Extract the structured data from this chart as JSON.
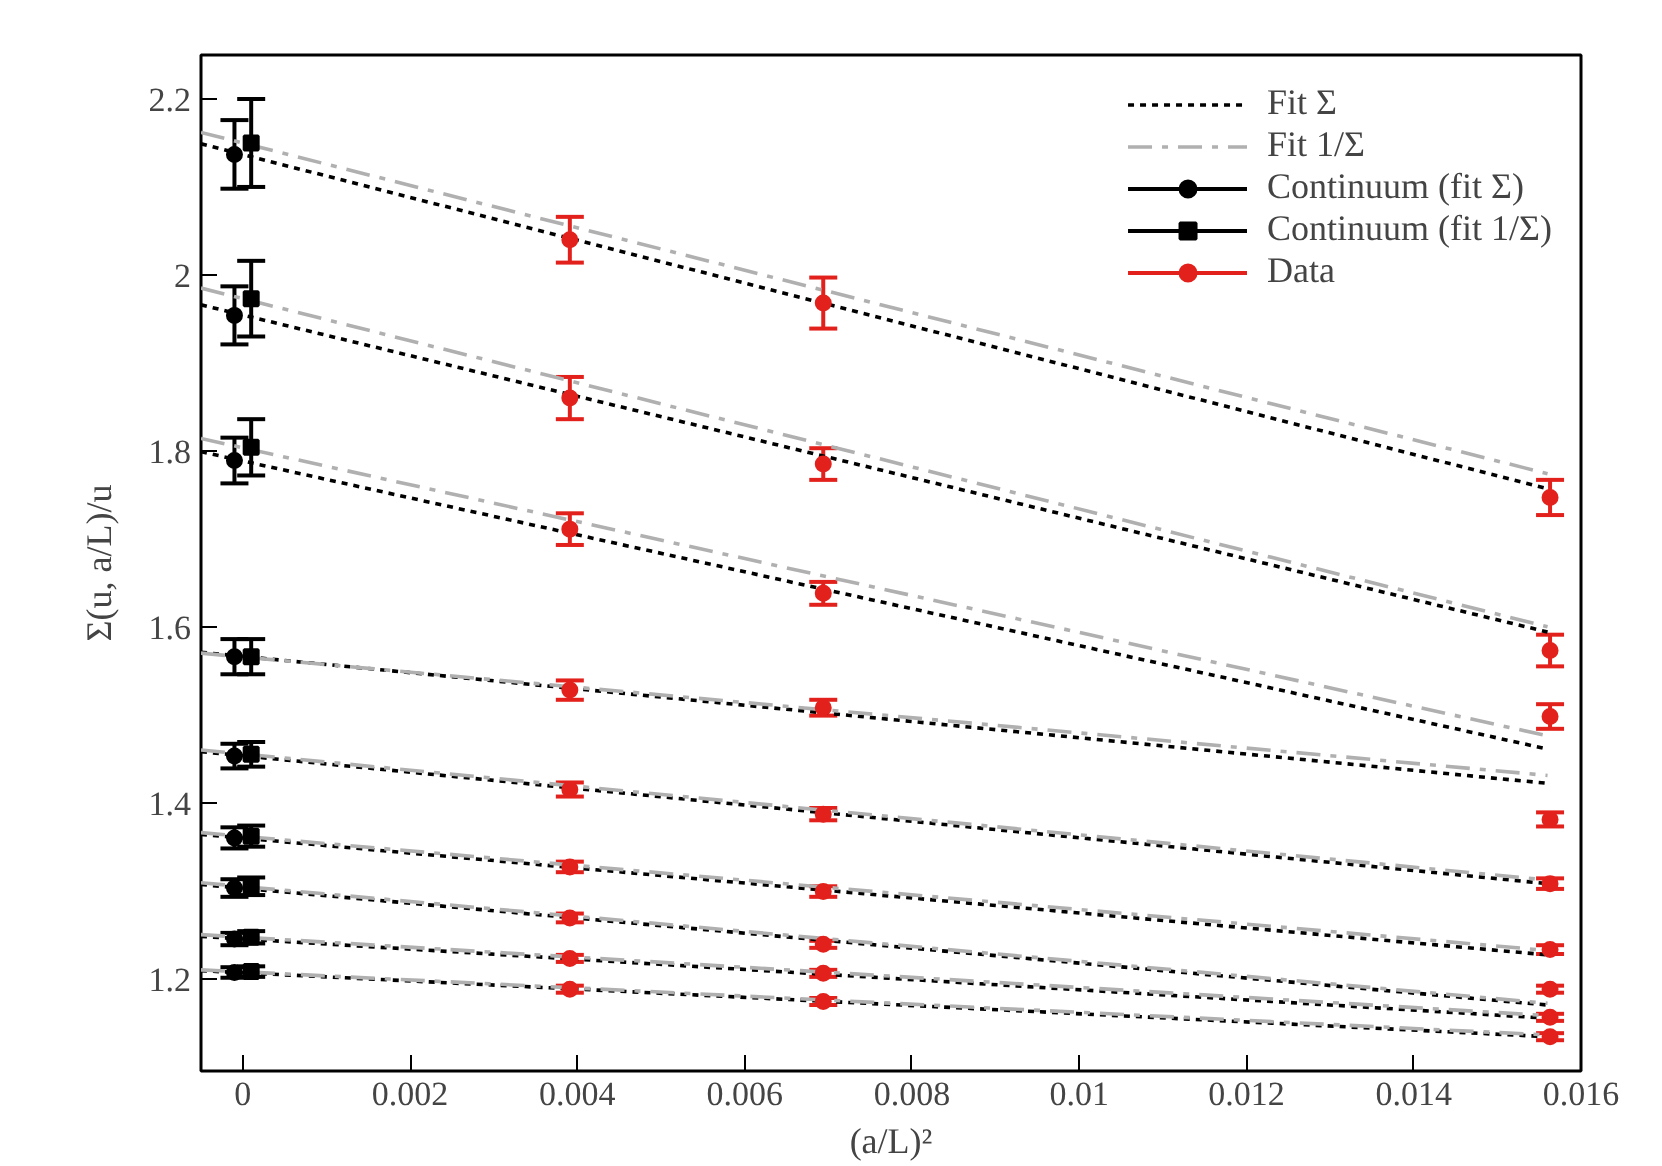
{
  "chart_data": {
    "type": "scatter",
    "xlabel": "(a/L)²",
    "ylabel": "Σ(u, a/L)/u",
    "xlim": [
      -0.0005,
      0.016
    ],
    "ylim": [
      1.095,
      2.25
    ],
    "xticks": [
      0,
      0.002,
      0.004,
      0.006,
      0.008,
      0.01,
      0.012,
      0.014,
      0.016
    ],
    "yticks": [
      1.2,
      1.4,
      1.6,
      1.8,
      2,
      2.2
    ],
    "grid": false,
    "legend": "top right",
    "series": [
      {
        "name": "Fit Σ",
        "type": "line",
        "color": "#000000",
        "line_style": "dotted",
        "marker": "none",
        "x": [
          -0.0005,
          0.0156
        ],
        "values": [
          2.149,
          1.757
        ]
      },
      {
        "type": "line",
        "color": "#000000",
        "line_style": "dotted",
        "marker": "none",
        "x": [
          -0.0005,
          0.0156
        ],
        "values": [
          1.966,
          1.594
        ]
      },
      {
        "type": "line",
        "color": "#000000",
        "line_style": "dotted",
        "marker": "none",
        "x": [
          -0.0005,
          0.0156
        ],
        "values": [
          1.799,
          1.461
        ]
      },
      {
        "type": "line",
        "color": "#000000",
        "line_style": "dotted",
        "marker": "none",
        "x": [
          -0.0005,
          0.0156
        ],
        "values": [
          1.571,
          1.422
        ]
      },
      {
        "type": "line",
        "color": "#000000",
        "line_style": "dotted",
        "marker": "none",
        "x": [
          -0.0005,
          0.0156
        ],
        "values": [
          1.458,
          1.308
        ]
      },
      {
        "type": "line",
        "color": "#000000",
        "line_style": "dotted",
        "marker": "none",
        "x": [
          -0.0005,
          0.0156
        ],
        "values": [
          1.364,
          1.227
        ]
      },
      {
        "type": "line",
        "color": "#000000",
        "line_style": "dotted",
        "marker": "none",
        "x": [
          -0.0005,
          0.0156
        ],
        "values": [
          1.307,
          1.17
        ]
      },
      {
        "type": "line",
        "color": "#000000",
        "line_style": "dotted",
        "marker": "none",
        "x": [
          -0.0005,
          0.0156
        ],
        "values": [
          1.248,
          1.155
        ]
      },
      {
        "type": "line",
        "color": "#000000",
        "line_style": "dotted",
        "marker": "none",
        "x": [
          -0.0005,
          0.0156
        ],
        "values": [
          1.209,
          1.134
        ]
      },
      {
        "name": "Fit 1/Σ",
        "type": "line",
        "color": "#b0b0b0",
        "line_style": "dashed",
        "marker": "none",
        "x": [
          -0.0005,
          0.0156
        ],
        "values": [
          2.162,
          1.774
        ]
      },
      {
        "type": "line",
        "color": "#b0b0b0",
        "line_style": "dashed",
        "marker": "none",
        "x": [
          -0.0005,
          0.0156
        ],
        "values": [
          1.985,
          1.6
        ]
      },
      {
        "type": "line",
        "color": "#b0b0b0",
        "line_style": "dashed",
        "marker": "none",
        "x": [
          -0.0005,
          0.0156
        ],
        "values": [
          1.814,
          1.476
        ]
      },
      {
        "type": "line",
        "color": "#b0b0b0",
        "line_style": "dashed",
        "marker": "none",
        "x": [
          -0.0005,
          0.0156
        ],
        "values": [
          1.57,
          1.431
        ]
      },
      {
        "type": "line",
        "color": "#b0b0b0",
        "line_style": "dashed",
        "marker": "none",
        "x": [
          -0.0005,
          0.0156
        ],
        "values": [
          1.46,
          1.312
        ]
      },
      {
        "type": "line",
        "color": "#b0b0b0",
        "line_style": "dashed",
        "marker": "none",
        "x": [
          -0.0005,
          0.0156
        ],
        "values": [
          1.366,
          1.232
        ]
      },
      {
        "type": "line",
        "color": "#b0b0b0",
        "line_style": "dashed",
        "marker": "none",
        "x": [
          -0.0005,
          0.0156
        ],
        "values": [
          1.309,
          1.172
        ]
      },
      {
        "type": "line",
        "color": "#b0b0b0",
        "line_style": "dashed",
        "marker": "none",
        "x": [
          -0.0005,
          0.0156
        ],
        "values": [
          1.25,
          1.158
        ]
      },
      {
        "type": "line",
        "color": "#b0b0b0",
        "line_style": "dashed",
        "marker": "none",
        "x": [
          -0.0005,
          0.0156
        ],
        "values": [
          1.21,
          1.136
        ]
      },
      {
        "name": "Continuum (fit Σ)",
        "color": "#000000",
        "marker": "circle",
        "x": [
          -0.0001,
          -0.0001,
          -0.0001,
          -0.0001,
          -0.0001,
          -0.0001,
          -0.0001,
          -0.0001,
          -0.0001
        ],
        "values": [
          2.137,
          1.954,
          1.789,
          1.566,
          1.453,
          1.36,
          1.303,
          1.245,
          1.207
        ],
        "errors": [
          0.039,
          0.033,
          0.026,
          0.02,
          0.014,
          0.012,
          0.01,
          0.007,
          0.006
        ]
      },
      {
        "name": "Continuum (fit 1/Σ)",
        "color": "#000000",
        "marker": "square",
        "x": [
          0.0001,
          0.0001,
          0.0001,
          0.0001,
          0.0001,
          0.0001,
          0.0001,
          0.0001,
          0.0001
        ],
        "values": [
          2.15,
          1.973,
          1.804,
          1.566,
          1.455,
          1.362,
          1.305,
          1.247,
          1.208
        ],
        "errors": [
          0.05,
          0.043,
          0.032,
          0.02,
          0.014,
          0.012,
          0.01,
          0.007,
          0.006
        ]
      },
      {
        "name": "Data",
        "color": "#e3211c",
        "marker": "circle",
        "x": [
          0.00391,
          0.00694,
          0.01563,
          0.00391,
          0.00694,
          0.01563,
          0.00391,
          0.00694,
          0.01563,
          0.00391,
          0.00694,
          0.01563,
          0.00391,
          0.00694,
          0.01563,
          0.00391,
          0.00694,
          0.01563,
          0.00391,
          0.00694,
          0.01563,
          0.00391,
          0.00694,
          0.01563,
          0.00391,
          0.00694,
          0.01563
        ],
        "values": [
          2.04,
          1.968,
          1.747,
          1.86,
          1.785,
          1.573,
          1.711,
          1.638,
          1.498,
          1.528,
          1.508,
          1.381,
          1.415,
          1.387,
          1.308,
          1.327,
          1.299,
          1.233,
          1.269,
          1.239,
          1.188,
          1.223,
          1.206,
          1.156,
          1.188,
          1.174,
          1.134
        ],
        "errors": [
          0.026,
          0.029,
          0.02,
          0.024,
          0.018,
          0.018,
          0.018,
          0.013,
          0.014,
          0.011,
          0.009,
          0.008,
          0.008,
          0.007,
          0.006,
          0.006,
          0.006,
          0.005,
          0.005,
          0.004,
          0.004,
          0.004,
          0.004,
          0.004,
          0.004,
          0.004,
          0.004
        ]
      }
    ]
  }
}
